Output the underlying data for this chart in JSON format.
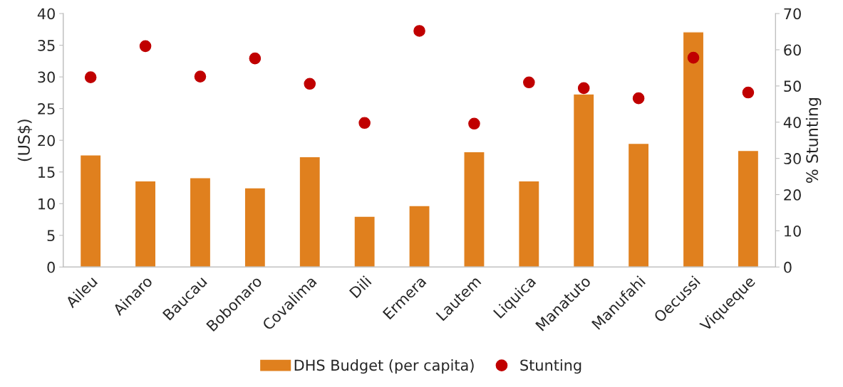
{
  "chart_data": {
    "type": "bar",
    "ylabel": "(US$)",
    "y2label": "% Stunting",
    "categories": [
      "Aileu",
      "Ainaro",
      "Baucau",
      "Bobonaro",
      "Covalima",
      "Dili",
      "Ermera",
      "Lautem",
      "Liquica",
      "Manatuto",
      "Manufahi",
      "Oecussi",
      "Viqueque"
    ],
    "series": [
      {
        "name": "DHS Budget (per capita)",
        "color": "#e0801e",
        "values": [
          17.7,
          13.6,
          14.1,
          12.5,
          17.4,
          8.0,
          9.7,
          18.2,
          13.6,
          27.3,
          19.5,
          37.1,
          18.4
        ]
      },
      {
        "name": "Stunting",
        "type": "scatter",
        "axis": "y2",
        "color": "#c00000",
        "marker": "circle",
        "values": [
          52.4,
          61.0,
          52.6,
          57.6,
          50.6,
          39.8,
          65.2,
          39.6,
          51.0,
          49.4,
          46.6,
          57.8,
          48.2
        ]
      }
    ],
    "ylim": [
      0,
      40
    ],
    "yticks": [
      0,
      5,
      10,
      15,
      20,
      25,
      30,
      35,
      40
    ],
    "y2lim": [
      0,
      70
    ],
    "y2ticks": [
      0,
      10,
      20,
      30,
      40,
      50,
      60,
      70
    ],
    "grid": false,
    "legend": "bottom"
  }
}
